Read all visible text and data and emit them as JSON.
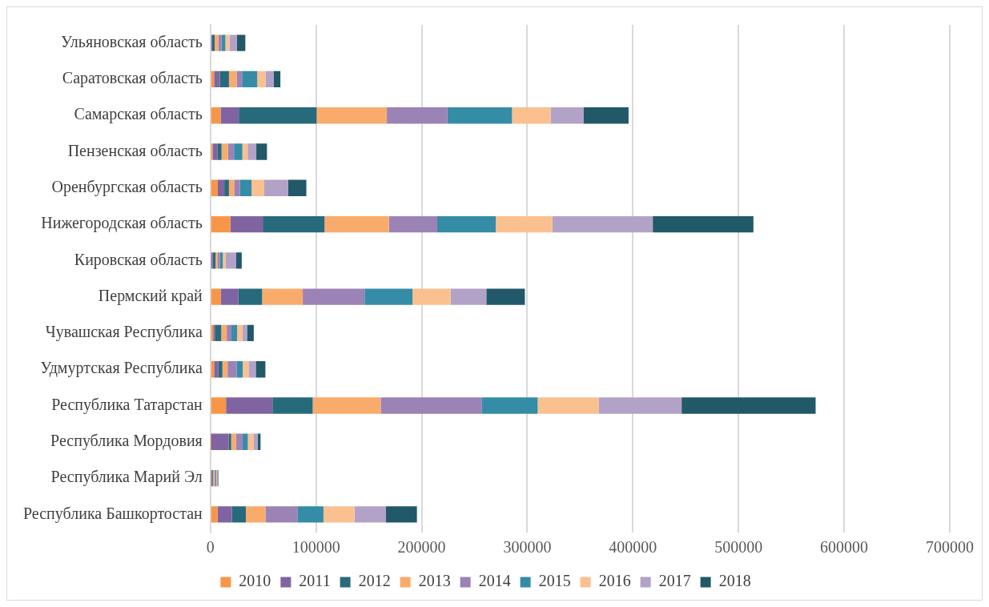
{
  "chart_data": {
    "type": "bar",
    "orientation": "horizontal",
    "stacked": true,
    "categories": [
      "Ульяновская область",
      "Саратовская область",
      "Самарская область",
      "Пензенская область",
      "Оренбургская область",
      "Нижегородская область",
      "Кировская область",
      "Пермский край",
      "Чувашская Республика",
      "Удмуртская Республика",
      "Республика Татарстан",
      "Республика Мордовия",
      "Республика Марий Эл",
      "Республика Башкортостан"
    ],
    "series": [
      {
        "name": "2010",
        "color": "#f79646",
        "values": [
          null,
          3400,
          9600,
          2000,
          6900,
          18900,
          null,
          9600,
          2600,
          3400,
          14700,
          300,
          500,
          6800
        ]
      },
      {
        "name": "2011",
        "color": "#8064a2",
        "values": [
          1700,
          5400,
          17200,
          4500,
          6200,
          30600,
          2100,
          16900,
          1500,
          4100,
          44000,
          17000,
          1000,
          13500
        ]
      },
      {
        "name": "2012",
        "color": "#276a7c",
        "values": [
          2300,
          8700,
          73700,
          4000,
          4400,
          58500,
          2700,
          22400,
          6100,
          3800,
          38100,
          2300,
          800,
          13200
        ]
      },
      {
        "name": "2013",
        "color": "#f9ab6b",
        "values": [
          3400,
          7300,
          66500,
          6100,
          4900,
          61000,
          2100,
          38500,
          5200,
          4900,
          64400,
          4500,
          1200,
          18600
        ]
      },
      {
        "name": "2014",
        "color": "#9b83b5",
        "values": [
          3100,
          5100,
          57400,
          5700,
          5500,
          45700,
          2000,
          58500,
          4500,
          8600,
          95900,
          6400,
          1000,
          30200
        ]
      },
      {
        "name": "2015",
        "color": "#358ca6",
        "values": [
          3600,
          14400,
          61100,
          7900,
          11000,
          55400,
          2800,
          45400,
          5300,
          5700,
          52700,
          4900,
          900,
          24700
        ]
      },
      {
        "name": "2016",
        "color": "#fac090",
        "values": [
          4000,
          7800,
          36600,
          5000,
          12000,
          53700,
          2700,
          36100,
          5300,
          5600,
          58000,
          5300,
          800,
          29400
        ]
      },
      {
        "name": "2017",
        "color": "#b3a2c7",
        "values": [
          6800,
          7600,
          31000,
          8200,
          22700,
          95000,
          10000,
          33800,
          4100,
          6800,
          78300,
          4100,
          1000,
          29800
        ]
      },
      {
        "name": "2018",
        "color": "#215968",
        "values": [
          8100,
          6500,
          42800,
          10100,
          17200,
          95300,
          5200,
          36500,
          6400,
          9100,
          126900,
          2600,
          500,
          29300
        ]
      }
    ],
    "xlim": [
      0,
      700000
    ],
    "xticks": [
      0,
      100000,
      200000,
      300000,
      400000,
      500000,
      600000,
      700000
    ],
    "grid": "x",
    "legend": "bottom"
  }
}
